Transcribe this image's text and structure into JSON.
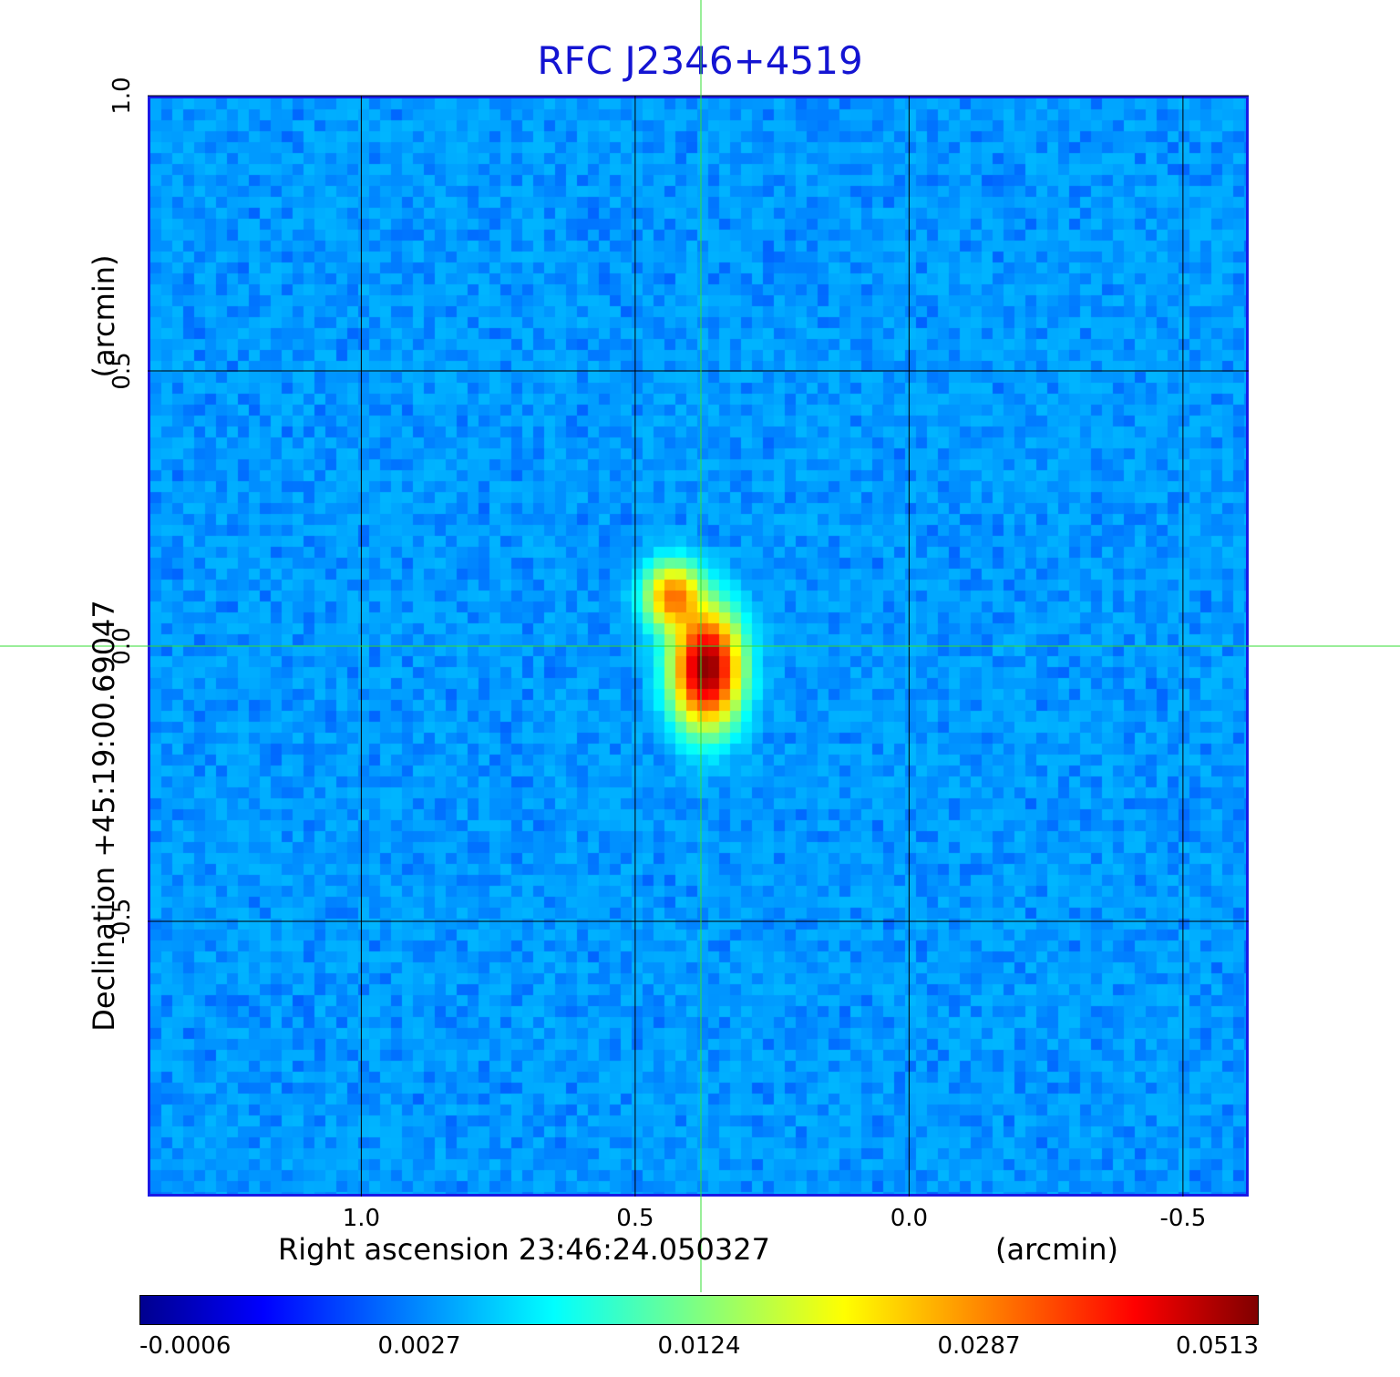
{
  "chart_data": {
    "type": "heatmap",
    "title": "RFC J2346+4519",
    "xlabel": "Right ascension  23:46:24.050327",
    "xlabel_unit": "(arcmin)",
    "ylabel": "Declination  +45:19:00.69047",
    "ylabel_unit": "(arcmin)",
    "xlim": [
      1.39,
      -0.62
    ],
    "ylim": [
      -1.0,
      1.0
    ],
    "x_ticks": [
      1.0,
      0.5,
      0.0,
      -0.5
    ],
    "x_tick_labels": [
      "1.0",
      "0.5",
      "0.0",
      "-0.5"
    ],
    "y_ticks": [
      1.0,
      0.5,
      0.0,
      -0.5
    ],
    "y_tick_labels": [
      "1.0",
      "0.5",
      "0.0",
      "-0.5"
    ],
    "grid": true,
    "crosshair": {
      "x": 0.38,
      "y": 0.0,
      "color": "#33dd33"
    },
    "colormap": "jet",
    "colorbar_ticks": [
      "-0.0006",
      "0.0027",
      "0.0124",
      "0.0287",
      "0.0513"
    ],
    "colorbar_range": [
      -0.0006,
      0.0513
    ],
    "background_level": -0.0003,
    "sources": [
      {
        "x": 0.37,
        "y": -0.04,
        "peak": 0.0513,
        "sigma_x": 0.035,
        "sigma_y": 0.06
      },
      {
        "x": 0.43,
        "y": 0.09,
        "peak": 0.025,
        "sigma_x": 0.03,
        "sigma_y": 0.035
      }
    ]
  }
}
